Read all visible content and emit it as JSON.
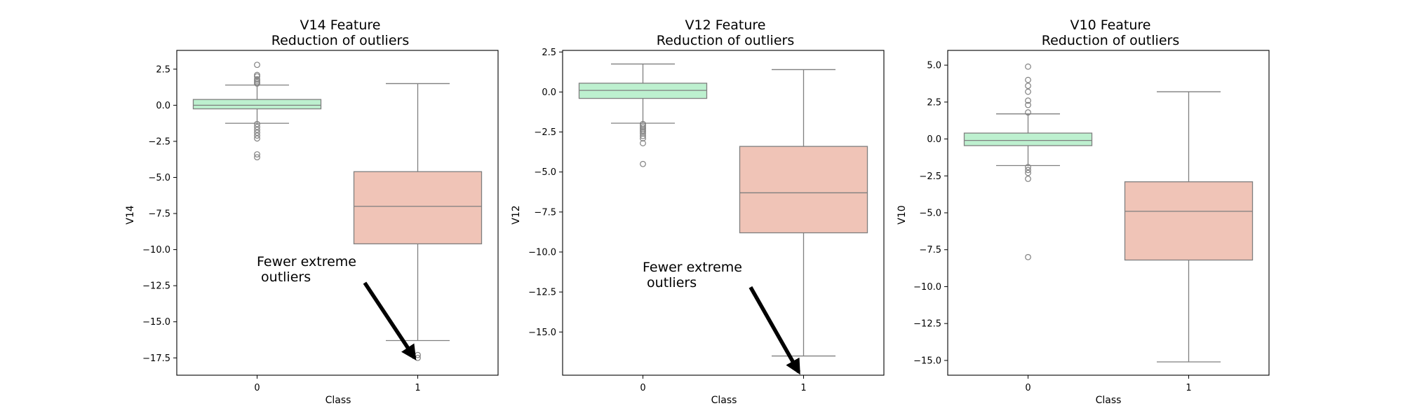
{
  "colors": {
    "class0_fill": "#bdf0cf",
    "class1_fill": "#f0c4b7",
    "box_stroke": "#7f7f7f",
    "axes_stroke": "#000000",
    "arrow": "#000000"
  },
  "chart_data": [
    {
      "type": "boxplot",
      "title_line1": "V14 Feature",
      "title_line2": "Reduction of outliers",
      "xlabel": "Class",
      "ylabel": "V14",
      "categories": [
        "0",
        "1"
      ],
      "ylim": [
        -18.7,
        3.8
      ],
      "yticks": [
        2.5,
        0.0,
        -2.5,
        -5.0,
        -7.5,
        -10.0,
        -12.5,
        -15.0,
        -17.5
      ],
      "ytick_labels": [
        "2.5",
        "0.0",
        "−2.5",
        "−5.0",
        "−7.5",
        "−10.0",
        "−12.5",
        "−15.0",
        "−17.5"
      ],
      "boxes": [
        {
          "class": "0",
          "whisker_low": -1.25,
          "q1": -0.25,
          "median": 0.0,
          "q3": 0.4,
          "whisker_high": 1.4,
          "fliers": [
            2.8,
            2.1,
            2.0,
            1.8,
            1.7,
            1.6,
            1.5,
            -1.3,
            -1.5,
            -1.7,
            -1.9,
            -2.1,
            -2.3,
            -3.4,
            -3.6
          ]
        },
        {
          "class": "1",
          "whisker_low": -16.3,
          "q1": -9.6,
          "median": -7.0,
          "q3": -4.6,
          "whisker_high": 1.5,
          "fliers": [
            -17.3,
            -17.5
          ]
        }
      ],
      "annotation": {
        "line1": "Fewer extreme",
        "line2": " outliers",
        "text_x": 0.0,
        "text_y": -10.7,
        "arrow_from_x": 0.67,
        "arrow_from_y": -12.3,
        "arrow_to_x": 0.98,
        "arrow_to_y": -17.5
      }
    },
    {
      "type": "boxplot",
      "title_line1": "V12 Feature",
      "title_line2": "Reduction of outliers",
      "xlabel": "Class",
      "ylabel": "V12",
      "categories": [
        "0",
        "1"
      ],
      "ylim": [
        -17.7,
        2.6
      ],
      "yticks": [
        2.5,
        0.0,
        -2.5,
        -5.0,
        -7.5,
        -10.0,
        -12.5,
        -15.0
      ],
      "ytick_labels": [
        "2.5",
        "0.0",
        "−2.5",
        "−5.0",
        "−7.5",
        "−10.0",
        "−12.5",
        "−15.0"
      ],
      "boxes": [
        {
          "class": "0",
          "whisker_low": -1.95,
          "q1": -0.4,
          "median": 0.1,
          "q3": 0.55,
          "whisker_high": 1.75,
          "fliers": [
            -2.0,
            -2.1,
            -2.2,
            -2.3,
            -2.4,
            -2.5,
            -2.6,
            -2.75,
            -2.9,
            -3.2,
            -4.5
          ]
        },
        {
          "class": "1",
          "whisker_low": -16.5,
          "q1": -8.8,
          "median": -6.3,
          "q3": -3.4,
          "whisker_high": 1.4,
          "fliers": []
        }
      ],
      "annotation": {
        "line1": "Fewer extreme",
        "line2": " outliers",
        "text_x": 0.0,
        "text_y": -10.6,
        "arrow_from_x": 0.67,
        "arrow_from_y": -12.2,
        "arrow_to_x": 0.97,
        "arrow_to_y": -17.5
      }
    },
    {
      "type": "boxplot",
      "title_line1": "V10 Feature",
      "title_line2": "Reduction of outliers",
      "xlabel": "Class",
      "ylabel": "V10",
      "categories": [
        "0",
        "1"
      ],
      "ylim": [
        -16.0,
        6.0
      ],
      "yticks": [
        5.0,
        2.5,
        0.0,
        -2.5,
        -5.0,
        -7.5,
        -10.0,
        -12.5,
        -15.0
      ],
      "ytick_labels": [
        "5.0",
        "2.5",
        "0.0",
        "−2.5",
        "−5.0",
        "−7.5",
        "−10.0",
        "−12.5",
        "−15.0"
      ],
      "boxes": [
        {
          "class": "0",
          "whisker_low": -1.8,
          "q1": -0.45,
          "median": -0.1,
          "q3": 0.4,
          "whisker_high": 1.7,
          "fliers": [
            4.9,
            4.0,
            3.6,
            3.2,
            2.6,
            2.3,
            1.8,
            -1.9,
            -2.1,
            -2.3,
            -2.7,
            -8.0
          ]
        },
        {
          "class": "1",
          "whisker_low": -15.1,
          "q1": -8.2,
          "median": -4.9,
          "q3": -2.9,
          "whisker_high": 3.2,
          "fliers": []
        }
      ]
    }
  ]
}
